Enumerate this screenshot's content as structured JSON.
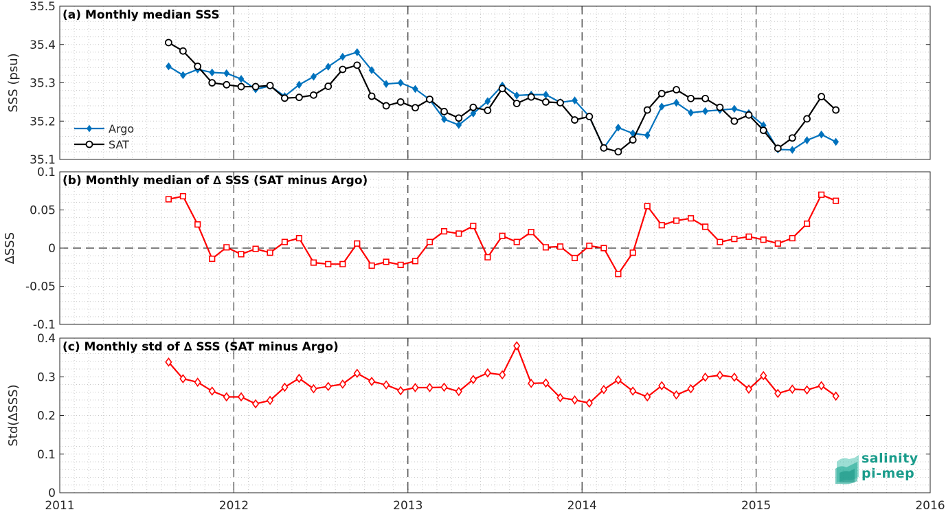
{
  "chart_data": [
    {
      "type": "line",
      "title": "(a) Monthly median SSS",
      "ylabel": "SSS (psu)",
      "xlim": [
        2011,
        2016
      ],
      "ylim": [
        35.1,
        35.5
      ],
      "xticks": [
        "2011",
        "2012",
        "2013",
        "2014",
        "2015",
        "2016"
      ],
      "yticks": [
        "35.1",
        "35.2",
        "35.3",
        "35.4",
        "35.5"
      ],
      "grid": "dotted minor",
      "legend_position": "left",
      "x": [
        2011.625,
        2011.708,
        2011.792,
        2011.875,
        2011.958,
        2012.042,
        2012.125,
        2012.208,
        2012.292,
        2012.375,
        2012.458,
        2012.542,
        2012.625,
        2012.708,
        2012.792,
        2012.875,
        2012.958,
        2013.042,
        2013.125,
        2013.208,
        2013.292,
        2013.375,
        2013.458,
        2013.542,
        2013.625,
        2013.708,
        2013.792,
        2013.875,
        2013.958,
        2014.042,
        2014.125,
        2014.208,
        2014.292,
        2014.375,
        2014.458,
        2014.542,
        2014.625,
        2014.708,
        2014.792,
        2014.875,
        2014.958,
        2015.042,
        2015.125,
        2015.208,
        2015.292,
        2015.375,
        2015.458
      ],
      "series": [
        {
          "name": "Argo",
          "color": "#0072bd",
          "marker": "diamond",
          "values": [
            35.343,
            35.32,
            35.335,
            35.327,
            35.325,
            35.31,
            35.283,
            35.292,
            35.265,
            35.295,
            35.316,
            35.342,
            35.368,
            35.38,
            35.333,
            35.297,
            35.3,
            35.284,
            35.256,
            35.205,
            35.19,
            35.22,
            35.252,
            35.293,
            35.267,
            35.269,
            35.269,
            35.249,
            35.254,
            35.212,
            35.13,
            35.183,
            35.168,
            35.163,
            35.238,
            35.248,
            35.222,
            35.226,
            35.229,
            35.232,
            35.221,
            35.189,
            35.126,
            35.125,
            35.15,
            35.165,
            35.146
          ]
        },
        {
          "name": "SAT",
          "color": "#000000",
          "marker": "circle",
          "values": [
            35.405,
            35.383,
            35.343,
            35.3,
            35.295,
            35.29,
            35.29,
            35.293,
            35.26,
            35.262,
            35.268,
            35.291,
            35.335,
            35.346,
            35.265,
            35.24,
            35.25,
            35.235,
            35.257,
            35.225,
            35.208,
            35.236,
            35.228,
            35.285,
            35.246,
            35.263,
            35.25,
            35.248,
            35.203,
            35.212,
            35.13,
            35.12,
            35.151,
            35.229,
            35.272,
            35.282,
            35.259,
            35.259,
            35.236,
            35.2,
            35.216,
            35.176,
            35.129,
            35.156,
            35.206,
            35.264,
            35.229
          ]
        }
      ]
    },
    {
      "type": "line",
      "title": "(b) Monthly median of ∆ SSS (SAT minus Argo)",
      "ylabel": "∆SSS",
      "xlim": [
        2011,
        2016
      ],
      "ylim": [
        -0.1,
        0.1
      ],
      "xticks": [
        "2011",
        "2012",
        "2013",
        "2014",
        "2015",
        "2016"
      ],
      "yticks": [
        "-0.1",
        "-0.05",
        "0",
        "0.05",
        "0.1"
      ],
      "grid": "dotted minor",
      "x": [
        2011.625,
        2011.708,
        2011.792,
        2011.875,
        2011.958,
        2012.042,
        2012.125,
        2012.208,
        2012.292,
        2012.375,
        2012.458,
        2012.542,
        2012.625,
        2012.708,
        2012.792,
        2012.875,
        2012.958,
        2013.042,
        2013.125,
        2013.208,
        2013.292,
        2013.375,
        2013.458,
        2013.542,
        2013.625,
        2013.708,
        2013.792,
        2013.875,
        2013.958,
        2014.042,
        2014.125,
        2014.208,
        2014.292,
        2014.375,
        2014.458,
        2014.542,
        2014.625,
        2014.708,
        2014.792,
        2014.875,
        2014.958,
        2015.042,
        2015.125,
        2015.208,
        2015.292,
        2015.375,
        2015.458
      ],
      "series": [
        {
          "name": "",
          "color": "#ff0000",
          "marker": "square",
          "values": [
            0.064,
            0.068,
            0.031,
            -0.014,
            0.001,
            -0.008,
            -0.001,
            -0.006,
            0.008,
            0.013,
            -0.019,
            -0.021,
            -0.021,
            0.006,
            -0.023,
            -0.018,
            -0.022,
            -0.017,
            0.008,
            0.022,
            0.019,
            0.029,
            -0.012,
            0.016,
            0.008,
            0.021,
            0.001,
            0.002,
            -0.013,
            0.003,
            0.0,
            -0.034,
            -0.006,
            0.055,
            0.03,
            0.036,
            0.039,
            0.028,
            0.008,
            0.012,
            0.015,
            0.011,
            0.006,
            0.013,
            0.032,
            0.07,
            0.062
          ]
        }
      ]
    },
    {
      "type": "line",
      "title": "(c) Monthly std of ∆ SSS (SAT minus Argo)",
      "ylabel": "Std(∆SSS)",
      "xlim": [
        2011,
        2016
      ],
      "ylim": [
        0,
        0.4
      ],
      "xticks": [
        "2011",
        "2012",
        "2013",
        "2014",
        "2015",
        "2016"
      ],
      "yticks": [
        "0",
        "0.1",
        "0.2",
        "0.3",
        "0.4"
      ],
      "grid": "dotted minor",
      "x": [
        2011.625,
        2011.708,
        2011.792,
        2011.875,
        2011.958,
        2012.042,
        2012.125,
        2012.208,
        2012.292,
        2012.375,
        2012.458,
        2012.542,
        2012.625,
        2012.708,
        2012.792,
        2012.875,
        2012.958,
        2013.042,
        2013.125,
        2013.208,
        2013.292,
        2013.375,
        2013.458,
        2013.542,
        2013.625,
        2013.708,
        2013.792,
        2013.875,
        2013.958,
        2014.042,
        2014.125,
        2014.208,
        2014.292,
        2014.375,
        2014.458,
        2014.542,
        2014.625,
        2014.708,
        2014.792,
        2014.875,
        2014.958,
        2015.042,
        2015.125,
        2015.208,
        2015.292,
        2015.375,
        2015.458
      ],
      "series": [
        {
          "name": "",
          "color": "#ff0000",
          "marker": "diamond",
          "values": [
            0.338,
            0.295,
            0.286,
            0.263,
            0.248,
            0.248,
            0.23,
            0.239,
            0.273,
            0.296,
            0.269,
            0.275,
            0.281,
            0.309,
            0.288,
            0.279,
            0.264,
            0.272,
            0.272,
            0.273,
            0.262,
            0.293,
            0.31,
            0.305,
            0.38,
            0.283,
            0.284,
            0.246,
            0.24,
            0.232,
            0.267,
            0.292,
            0.263,
            0.248,
            0.277,
            0.253,
            0.269,
            0.299,
            0.304,
            0.299,
            0.268,
            0.303,
            0.257,
            0.268,
            0.266,
            0.277,
            0.25
          ]
        }
      ]
    }
  ],
  "logo": {
    "line1": "salinity",
    "line2": "pi-mep"
  }
}
